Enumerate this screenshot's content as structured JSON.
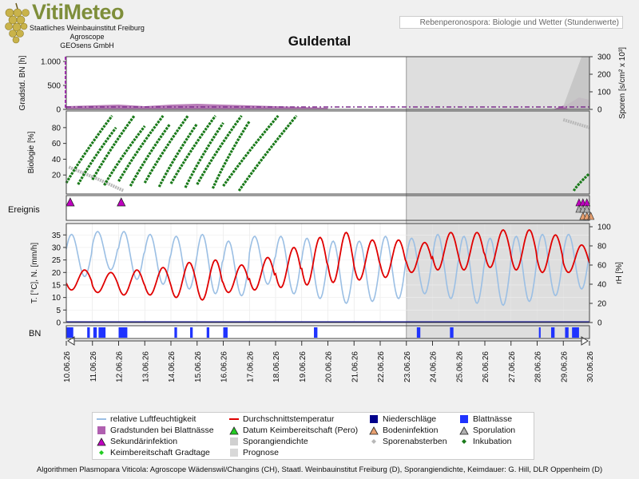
{
  "header": {
    "brand": "VitiMeteo",
    "org_lines": [
      "Staatliches Weinbauinstitut Freiburg",
      "Agroscope",
      "GEOsens GmbH"
    ],
    "subtitle": "Rebenperonospora: Biologie und Wetter (Stundenwerte)"
  },
  "chart_data": {
    "type": "line",
    "title": "Guldental",
    "x": [
      "10.06.26",
      "11.06.26",
      "12.06.26",
      "13.06.26",
      "14.06.26",
      "15.06.26",
      "16.06.26",
      "17.06.26",
      "18.06.26",
      "19.06.26",
      "20.06.26",
      "21.06.26",
      "22.06.26",
      "23.06.26",
      "24.06.26",
      "25.06.26",
      "26.06.26",
      "27.06.26",
      "28.06.26",
      "29.06.26",
      "30.06.26"
    ],
    "forecast_from": "23.06.26",
    "panels": {
      "top": {
        "ylabel_left": "Gradstd. BN [h]",
        "ylabel_right": "Sporen [s/cm² x 10³]",
        "ticks_left": [
          "0",
          "500",
          "1.000"
        ],
        "ticks_right": [
          "0",
          "100",
          "200",
          "300"
        ]
      },
      "biology": {
        "ylabel": "Biologie [%]",
        "ticks": [
          "20",
          "40",
          "60",
          "80"
        ],
        "incubation_start_day": [
          0.0,
          0.45,
          1.0,
          1.45,
          2.0,
          2.45,
          3.0,
          3.55,
          4.0,
          4.55,
          5.0,
          5.6,
          6.0,
          6.6,
          19.4
        ],
        "incubation_start_pct": [
          10,
          8,
          14,
          7,
          12,
          6,
          10,
          5,
          9,
          4,
          8,
          3,
          6,
          0,
          0
        ],
        "incubation_end_day": [
          1.75,
          1.9,
          2.6,
          3.0,
          3.7,
          3.95,
          4.65,
          5.0,
          5.7,
          6.0,
          6.7,
          7.0,
          8.1,
          8.8,
          20.0
        ],
        "incubation_end_pct": [
          95,
          80,
          95,
          82,
          95,
          84,
          95,
          85,
          95,
          86,
          95,
          88,
          95,
          95,
          22
        ]
      },
      "events": {
        "label": "Ereignis",
        "secondary_infection_days": [
          0.15,
          2.1
        ],
        "late_markers_days": [
          19.6,
          19.75,
          19.9
        ]
      },
      "weather": {
        "ylabel_left": "T. [°C], N. [mm/h]",
        "ylabel_right": "rH [%]",
        "ticks_left": [
          "0",
          "5",
          "10",
          "15",
          "20",
          "25",
          "30",
          "35"
        ],
        "ticks_right": [
          "0",
          "20",
          "40",
          "60",
          "80",
          "100"
        ],
        "temp_daily_min": [
          13,
          12,
          11,
          11,
          10,
          9,
          12,
          13,
          14,
          15,
          16,
          17,
          18,
          20,
          21,
          21,
          22,
          21,
          20,
          20,
          19
        ],
        "temp_daily_max": [
          21,
          20,
          21,
          22,
          24,
          25,
          23,
          26,
          30,
          34,
          36,
          33,
          33,
          32,
          36,
          36,
          37,
          37,
          35,
          31,
          26
        ],
        "rh_daily_min": [
          48,
          55,
          45,
          40,
          35,
          30,
          28,
          40,
          30,
          25,
          20,
          22,
          25,
          30,
          25,
          20,
          18,
          22,
          28,
          35,
          45
        ],
        "rh_daily_max": [
          92,
          95,
          95,
          92,
          90,
          92,
          85,
          90,
          90,
          88,
          85,
          85,
          90,
          88,
          92,
          90,
          88,
          90,
          92,
          92,
          90
        ]
      },
      "leaf_wetness": {
        "label": "BN",
        "bars_day": [
          [
            -0.1,
            0.3
          ],
          [
            1.2,
            1.35
          ],
          [
            1.55,
            1.75
          ],
          [
            1.85,
            2.25
          ],
          [
            3.0,
            3.5
          ],
          [
            6.2,
            6.35
          ],
          [
            7.1,
            7.25
          ],
          [
            8.05,
            8.2
          ],
          [
            9.0,
            9.25
          ],
          [
            14.2,
            14.4
          ],
          [
            20.1,
            20.3
          ],
          [
            22.0,
            22.2
          ],
          [
            27.1,
            27.2
          ],
          [
            27.8,
            28.0
          ],
          [
            28.6,
            28.8
          ],
          [
            29.0,
            29.4
          ]
        ]
      }
    },
    "legend": [
      {
        "key": "rh",
        "label": "relative Luftfeuchtigkeit",
        "color": "#9bbfe4"
      },
      {
        "key": "temp",
        "label": "Durchschnittstemperatur",
        "color": "#e00000"
      },
      {
        "key": "rain",
        "label": "Niederschläge",
        "color": "#00008b"
      },
      {
        "key": "wet",
        "label": "Blattnässe",
        "color": "#1f33ff"
      },
      {
        "key": "degh",
        "label": "Gradstunden bei Blattnässe",
        "color": "#b060b0"
      },
      {
        "key": "germ",
        "label": "Datum Keimbereitschaft (Pero)",
        "color": "#22cc22"
      },
      {
        "key": "soil",
        "label": "Bodeninfektion",
        "color": "#e8a070"
      },
      {
        "key": "spor",
        "label": "Sporulation",
        "color": "#b0b0b0"
      },
      {
        "key": "sec",
        "label": "Sekundärinfektion",
        "color": "#c000c0"
      },
      {
        "key": "dens",
        "label": "Sporangiendichte",
        "color": "#d0d0d0"
      },
      {
        "key": "death",
        "label": "Sporenabsterben",
        "color": "#b8b8b8"
      },
      {
        "key": "inc",
        "label": "Inkubation",
        "color": "#1a7a1a"
      },
      {
        "key": "germgd",
        "label": "Keimbereitschaft Gradtage",
        "color": "#22cc22"
      },
      {
        "key": "prog",
        "label": "Prognose",
        "color": "#d8d8d8"
      }
    ]
  },
  "footer": "Algorithmen Plasmopara Viticola: Agroscope Wädenswil/Changins (CH), Staatl. Weinbauinstitut Freiburg (D), Sporangiendichte, Keimdauer: G. Hill, DLR Oppenheim (D)"
}
